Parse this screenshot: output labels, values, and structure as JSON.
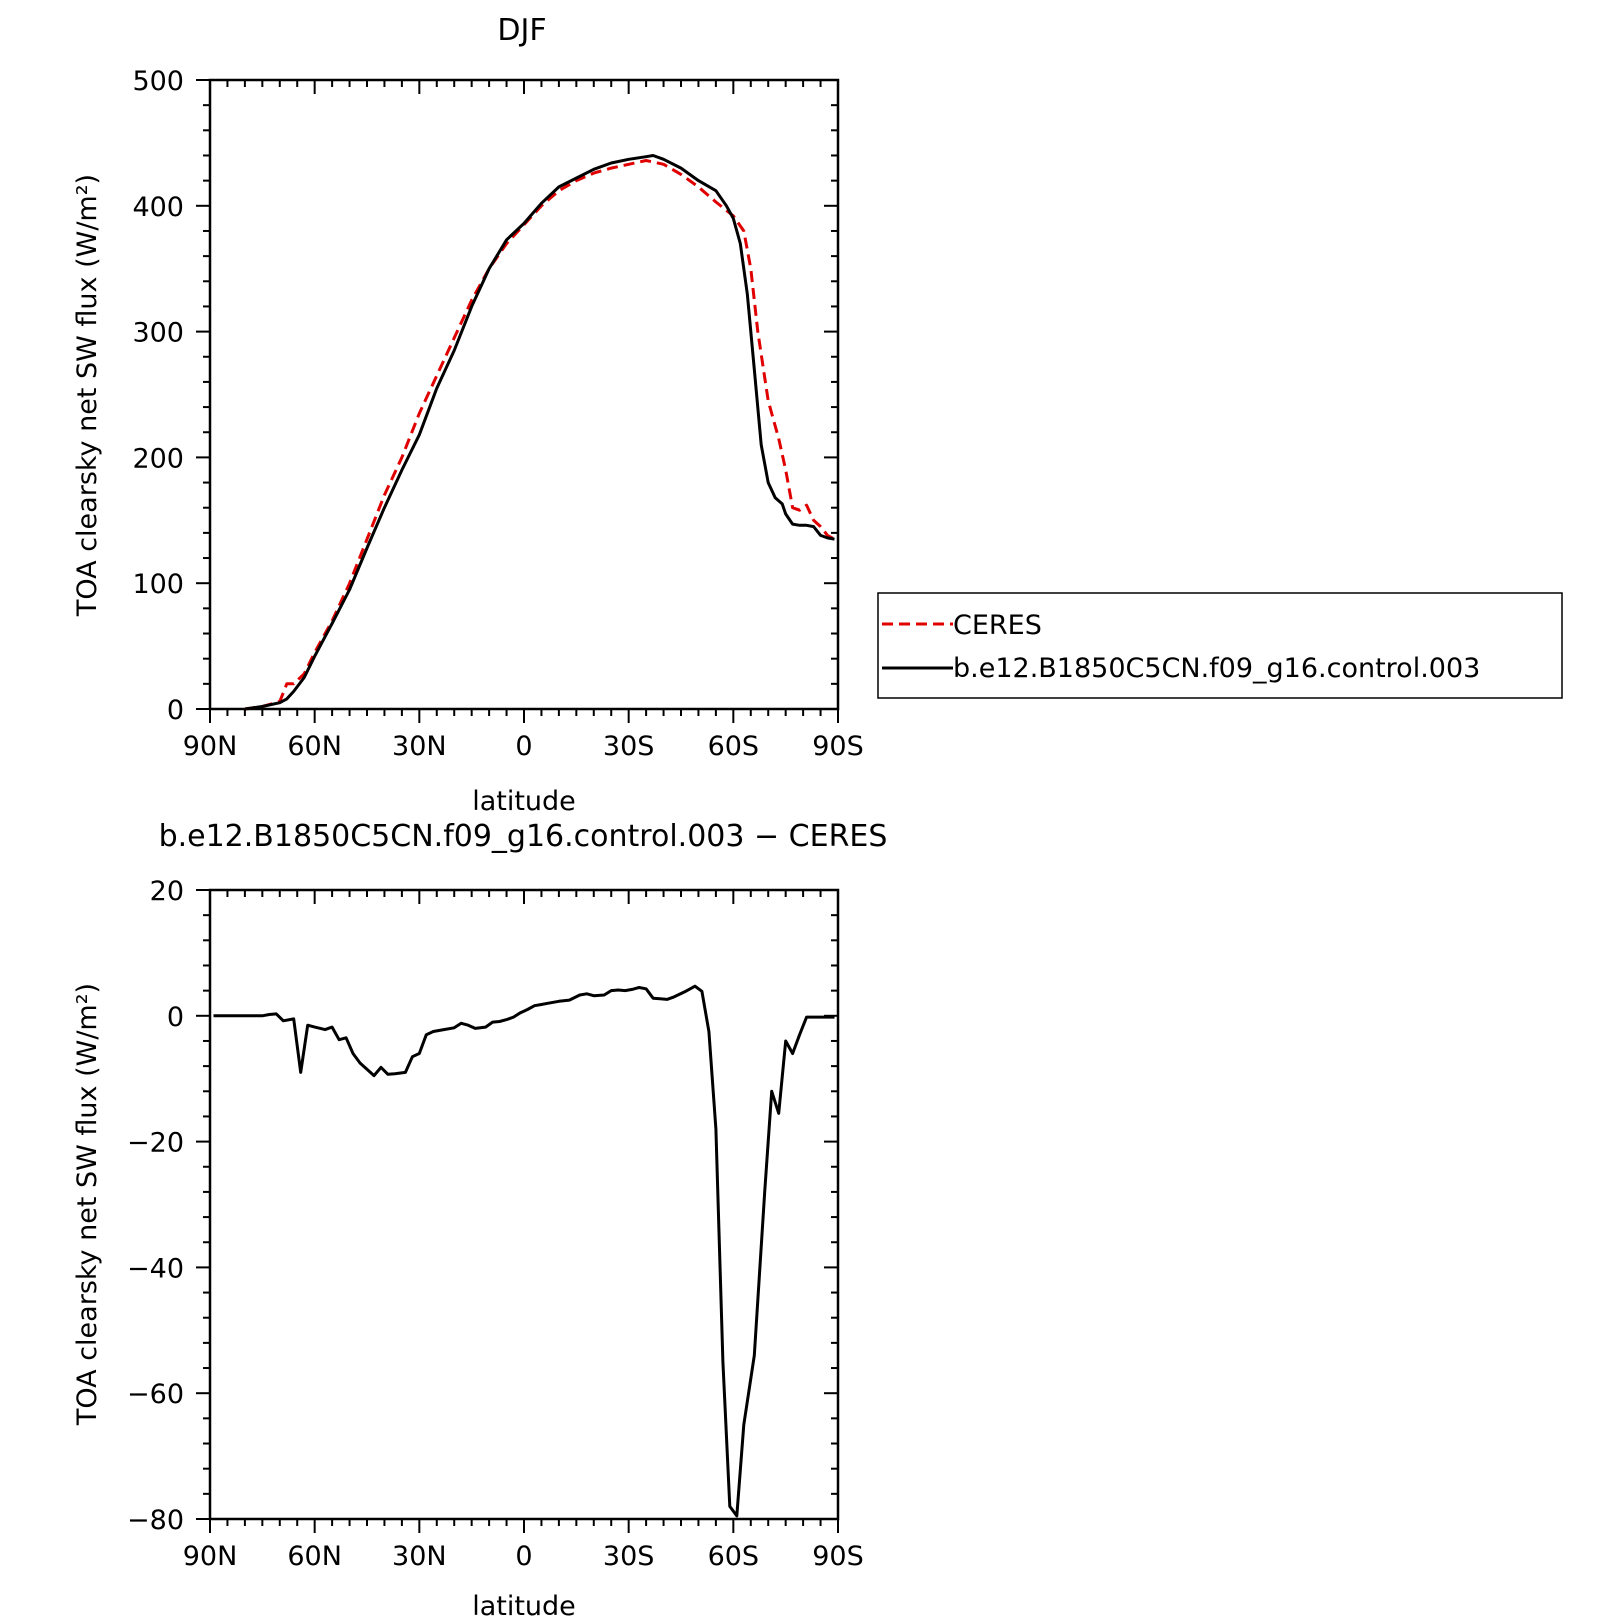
{
  "chart_data": [
    {
      "type": "line",
      "title": "DJF",
      "xlabel": "latitude",
      "ylabel": "TOA clearsky net SW flux (W/m²)",
      "xlim": [
        90,
        -90
      ],
      "ylim": [
        0,
        500
      ],
      "x_tick_labels": [
        "90N",
        "60N",
        "30N",
        "0",
        "30S",
        "60S",
        "90S"
      ],
      "y_tick_labels": [
        "0",
        "100",
        "200",
        "300",
        "400",
        "500"
      ],
      "legend_position": "right",
      "series": [
        {
          "name": "CERES",
          "color": "#e00000",
          "style": "dashed",
          "x": [
            80,
            75,
            70,
            68,
            66,
            63,
            60,
            55,
            50,
            45,
            40,
            35,
            30,
            25,
            20,
            15,
            10,
            5,
            0,
            -5,
            -10,
            -15,
            -20,
            -25,
            -30,
            -35,
            -40,
            -45,
            -50,
            -55,
            -60,
            -63,
            -65,
            -67,
            -70,
            -73,
            -75,
            -77,
            -79,
            -81,
            -83,
            -85,
            -87,
            -89
          ],
          "y": [
            0,
            2,
            6,
            20,
            20,
            28,
            45,
            70,
            100,
            135,
            170,
            200,
            235,
            265,
            295,
            325,
            350,
            370,
            385,
            400,
            412,
            420,
            426,
            430,
            433,
            436,
            433,
            425,
            415,
            403,
            392,
            380,
            350,
            300,
            245,
            215,
            190,
            160,
            158,
            162,
            150,
            145,
            138,
            135
          ]
        },
        {
          "name": "b.e12.B1850C5CN.f09_g16.control.003",
          "color": "#000000",
          "style": "solid",
          "x": [
            80,
            75,
            70,
            68,
            66,
            63,
            60,
            55,
            50,
            45,
            40,
            35,
            30,
            25,
            20,
            15,
            10,
            5,
            0,
            -5,
            -10,
            -15,
            -20,
            -25,
            -30,
            -35,
            -37,
            -40,
            -45,
            -50,
            -55,
            -58,
            -60,
            -62,
            -64,
            -66,
            -68,
            -70,
            -72,
            -74,
            -75,
            -77,
            -79,
            -81,
            -83,
            -85,
            -87,
            -89
          ],
          "y": [
            0,
            2,
            5,
            8,
            14,
            25,
            42,
            68,
            95,
            128,
            160,
            190,
            218,
            255,
            285,
            320,
            350,
            373,
            386,
            402,
            415,
            422,
            429,
            434,
            437,
            439,
            440,
            437,
            430,
            420,
            412,
            400,
            390,
            370,
            330,
            270,
            210,
            180,
            168,
            163,
            155,
            147,
            146,
            146,
            145,
            138,
            136,
            135
          ]
        }
      ]
    },
    {
      "type": "line",
      "title": "b.e12.B1850C5CN.f09_g16.control.003 − CERES",
      "xlabel": "latitude",
      "ylabel": "TOA clearsky net SW flux (W/m²)",
      "xlim": [
        90,
        -90
      ],
      "ylim": [
        -80,
        20
      ],
      "x_tick_labels": [
        "90N",
        "60N",
        "30N",
        "0",
        "30S",
        "60S",
        "90S"
      ],
      "y_tick_labels": [
        "−80",
        "−60",
        "−40",
        "−20",
        "0",
        "20"
      ],
      "series": [
        {
          "color": "#000000",
          "style": "solid",
          "x": [
            89,
            85,
            80,
            77,
            75,
            73,
            71,
            69,
            66,
            64,
            62,
            60,
            57,
            55,
            53,
            51,
            49,
            47,
            43,
            41,
            39,
            37,
            34,
            32,
            30,
            28,
            26,
            23,
            20,
            18,
            16,
            14,
            11,
            9,
            7,
            5,
            3,
            1,
            -1,
            -3,
            -5,
            -7,
            -10,
            -13,
            -16,
            -18,
            -20,
            -23,
            -25,
            -27,
            -29,
            -31,
            -33,
            -35,
            -37,
            -39,
            -41,
            -43,
            -46,
            -49,
            -51,
            -53,
            -55,
            -57,
            -59,
            -61,
            -63,
            -66,
            -69,
            -71,
            -73,
            -75,
            -77,
            -79,
            -81,
            -83,
            -85,
            -87,
            -89
          ],
          "y": [
            0,
            0,
            0,
            0,
            0,
            0.2,
            0.3,
            -0.8,
            -0.5,
            -9,
            -1.5,
            -1.8,
            -2.2,
            -1.8,
            -3.8,
            -3.5,
            -6,
            -7.5,
            -9.5,
            -8.2,
            -9.3,
            -9.2,
            -9,
            -6.5,
            -6,
            -3,
            -2.5,
            -2.2,
            -1.9,
            -1.2,
            -1.5,
            -2,
            -1.8,
            -1,
            -0.9,
            -0.6,
            -0.2,
            0.5,
            1,
            1.6,
            1.8,
            2,
            2.3,
            2.5,
            3.3,
            3.5,
            3.2,
            3.3,
            4,
            4.1,
            4,
            4.2,
            4.5,
            4.3,
            2.8,
            2.7,
            2.6,
            3,
            3.8,
            4.7,
            3.9,
            -2.5,
            -18,
            -55,
            -78,
            -79.5,
            -65,
            -54,
            -28,
            -12,
            -15.5,
            -4,
            -6,
            -3,
            -0.2,
            -0.2,
            -0.2,
            -0.2,
            -0.2
          ]
        }
      ]
    }
  ]
}
